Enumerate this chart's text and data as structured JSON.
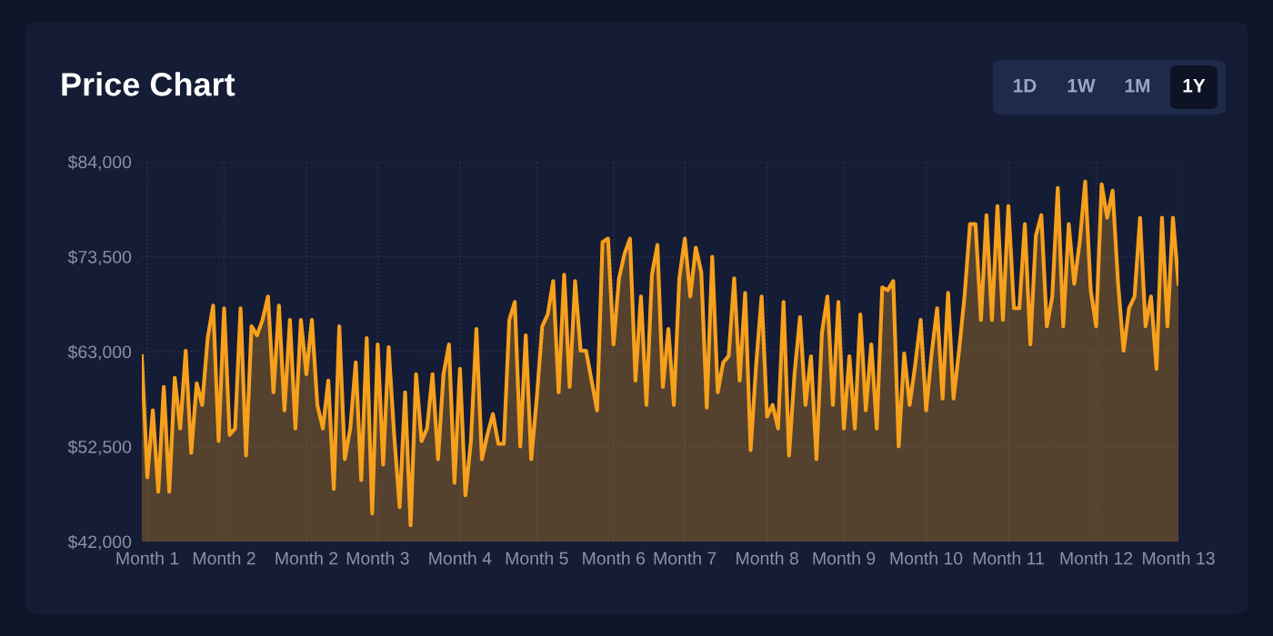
{
  "chart_data": {
    "type": "area",
    "title": "Price Chart",
    "annotations": [
      "1D",
      "1W",
      "1M",
      "1Y"
    ],
    "ylim": [
      42000,
      84000
    ],
    "categories": [
      null,
      "Month 1",
      null,
      null,
      null,
      null,
      null,
      null,
      null,
      null,
      null,
      null,
      null,
      null,
      null,
      "Month 2",
      null,
      null,
      null,
      null,
      null,
      null,
      null,
      null,
      null,
      null,
      null,
      null,
      null,
      null,
      "Month 2",
      null,
      null,
      null,
      null,
      null,
      null,
      null,
      null,
      null,
      null,
      null,
      null,
      "Month 3",
      null,
      null,
      null,
      null,
      null,
      null,
      null,
      null,
      null,
      null,
      null,
      null,
      null,
      null,
      "Month 4",
      null,
      null,
      null,
      null,
      null,
      null,
      null,
      null,
      null,
      null,
      null,
      null,
      null,
      "Month 5",
      null,
      null,
      null,
      null,
      null,
      null,
      null,
      null,
      null,
      null,
      null,
      null,
      null,
      "Month 6",
      null,
      null,
      null,
      null,
      null,
      null,
      null,
      null,
      null,
      null,
      null,
      null,
      "Month 7",
      null,
      null,
      null,
      null,
      null,
      null,
      null,
      null,
      null,
      null,
      null,
      null,
      null,
      null,
      "Month 8",
      null,
      null,
      null,
      null,
      null,
      null,
      null,
      null,
      null,
      null,
      null,
      null,
      null,
      "Month 9",
      null,
      null,
      null,
      null,
      null,
      null,
      null,
      null,
      null,
      null,
      null,
      null,
      null,
      null,
      "Month 10",
      null,
      null,
      null,
      null,
      null,
      null,
      null,
      null,
      null,
      null,
      null,
      null,
      null,
      null,
      "Month 11",
      null,
      null,
      null,
      null,
      null,
      null,
      null,
      null,
      null,
      null,
      null,
      null,
      null,
      null,
      null,
      "Month 12",
      null,
      null,
      null,
      null,
      null,
      null,
      null,
      null,
      null,
      null,
      null,
      null,
      null,
      null,
      "Month 13"
    ],
    "yticks": [
      {
        "value": 42000,
        "label": "$42,000"
      },
      {
        "value": 52500,
        "label": "$52,500"
      },
      {
        "value": 63000,
        "label": "$63,000"
      },
      {
        "value": 73500,
        "label": "$73,500"
      },
      {
        "value": 84000,
        "label": "$84,000"
      }
    ],
    "grid": true,
    "marker": "none",
    "line_style": "solid",
    "series": [
      {
        "color": "#f7a01c",
        "values": [
          62500,
          49100,
          56500,
          47500,
          59100,
          47500,
          60100,
          54500,
          63100,
          51800,
          59500,
          57100,
          64500,
          68100,
          53100,
          67800,
          53800,
          54500,
          67800,
          51500,
          65800,
          64800,
          66500,
          69100,
          58500,
          68100,
          56500,
          66500,
          54500,
          66500,
          60500,
          66500,
          57100,
          54500,
          59800,
          47800,
          65800,
          51100,
          54500,
          61800,
          48800,
          64500,
          45100,
          63800,
          50500,
          63500,
          53800,
          45800,
          58500,
          43800,
          60500,
          53100,
          54500,
          60500,
          51100,
          60500,
          63800,
          48500,
          61100,
          47100,
          53100,
          65500,
          51100,
          53800,
          56100,
          52800,
          52800,
          66500,
          68500,
          52500,
          64800,
          51100,
          57800,
          65800,
          67100,
          70800,
          58500,
          71500,
          59100,
          70800,
          63100,
          63100,
          59800,
          56500,
          75100,
          75500,
          63800,
          71100,
          73800,
          75500,
          59800,
          69100,
          57100,
          71500,
          74800,
          59100,
          65500,
          57100,
          71100,
          75500,
          69100,
          74500,
          71800,
          56800,
          73500,
          58500,
          61800,
          62500,
          71100,
          59800,
          69500,
          52100,
          61500,
          69100,
          55800,
          57100,
          54500,
          68500,
          51500,
          60500,
          66800,
          57100,
          62500,
          51100,
          65100,
          69100,
          57100,
          68500,
          54500,
          62500,
          54500,
          67100,
          56500,
          63800,
          54500,
          70100,
          69800,
          70800,
          52500,
          62800,
          57100,
          61500,
          66500,
          56500,
          62800,
          67800,
          57800,
          69500,
          57800,
          63100,
          69100,
          77100,
          77100,
          66500,
          78100,
          66500,
          79100,
          66500,
          79100,
          67800,
          67800,
          77100,
          63800,
          75800,
          78100,
          65800,
          69100,
          81100,
          65800,
          77100,
          70500,
          75100,
          81800,
          69800,
          65800,
          81500,
          77800,
          80800,
          70500,
          63100,
          67800,
          69100,
          77800,
          65800,
          69100,
          61100,
          77800,
          65800,
          77800,
          70500
        ]
      }
    ]
  }
}
